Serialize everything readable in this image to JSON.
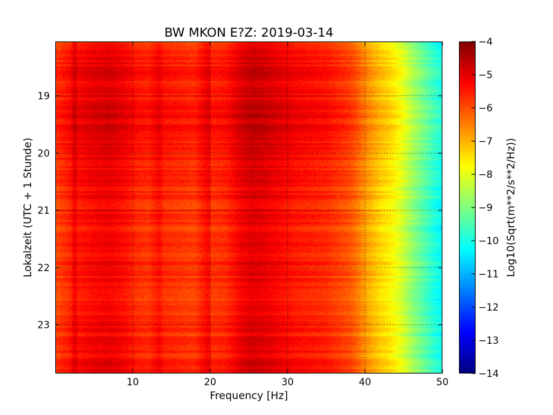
{
  "chart_data": {
    "type": "heatmap",
    "title": "BW MKON E?Z: 2019-03-14",
    "xlabel": "Frequency [Hz]",
    "ylabel": "Lokalzeit (UTC + 1 Stunde)",
    "xlim": [
      0,
      50
    ],
    "ylim": [
      18.05,
      23.85
    ],
    "y_inverted": true,
    "x_ticks": [
      10,
      20,
      30,
      40,
      50
    ],
    "x_tick_labels": [
      "10",
      "20",
      "30",
      "40",
      "50"
    ],
    "y_ticks": [
      19,
      20,
      21,
      22,
      23
    ],
    "y_tick_labels": [
      "19",
      "20",
      "21",
      "22",
      "23"
    ],
    "grid": true,
    "colormap": "jet",
    "colorbar": {
      "label": "Log10(Sqrt(m**2/s**2/Hz))",
      "range": [
        -14,
        -4
      ],
      "ticks": [
        -4,
        -5,
        -6,
        -7,
        -8,
        -9,
        -10,
        -11,
        -12,
        -13,
        -14
      ],
      "tick_labels": [
        "−4",
        "−5",
        "−6",
        "−7",
        "−8",
        "−9",
        "−10",
        "−11",
        "−12",
        "−13",
        "−14"
      ]
    },
    "frequency_profile": {
      "frequency_hz": [
        0,
        2,
        2.5,
        3,
        5,
        7,
        9,
        10.5,
        12,
        13.5,
        14,
        16,
        18,
        19.8,
        20.2,
        22,
        24,
        25.5,
        27,
        29,
        31,
        33,
        35,
        36.5,
        38,
        39,
        40,
        41,
        42,
        43,
        44,
        45,
        46,
        47,
        48,
        49,
        50
      ],
      "level": [
        -5.9,
        -5.5,
        -5.0,
        -5.4,
        -5.2,
        -5.1,
        -5.3,
        -5.6,
        -5.7,
        -5.3,
        -5.6,
        -5.7,
        -5.8,
        -5.2,
        -5.7,
        -5.6,
        -5.1,
        -4.9,
        -5.0,
        -5.2,
        -5.4,
        -5.5,
        -5.6,
        -5.8,
        -6.0,
        -6.3,
        -6.7,
        -7.0,
        -7.3,
        -7.5,
        -7.8,
        -8.2,
        -8.7,
        -9.1,
        -9.5,
        -9.9,
        -10.2
      ]
    },
    "time_profile": {
      "hour": [
        18.05,
        18.5,
        19.0,
        19.4,
        19.7,
        20.0,
        20.5,
        21.0,
        21.5,
        22.0,
        22.5,
        23.0,
        23.5,
        23.85
      ],
      "offset": [
        -0.1,
        0.2,
        0.1,
        0.35,
        0.3,
        0.15,
        0.0,
        -0.05,
        -0.1,
        0.0,
        -0.1,
        -0.05,
        0.0,
        0.1
      ]
    }
  }
}
